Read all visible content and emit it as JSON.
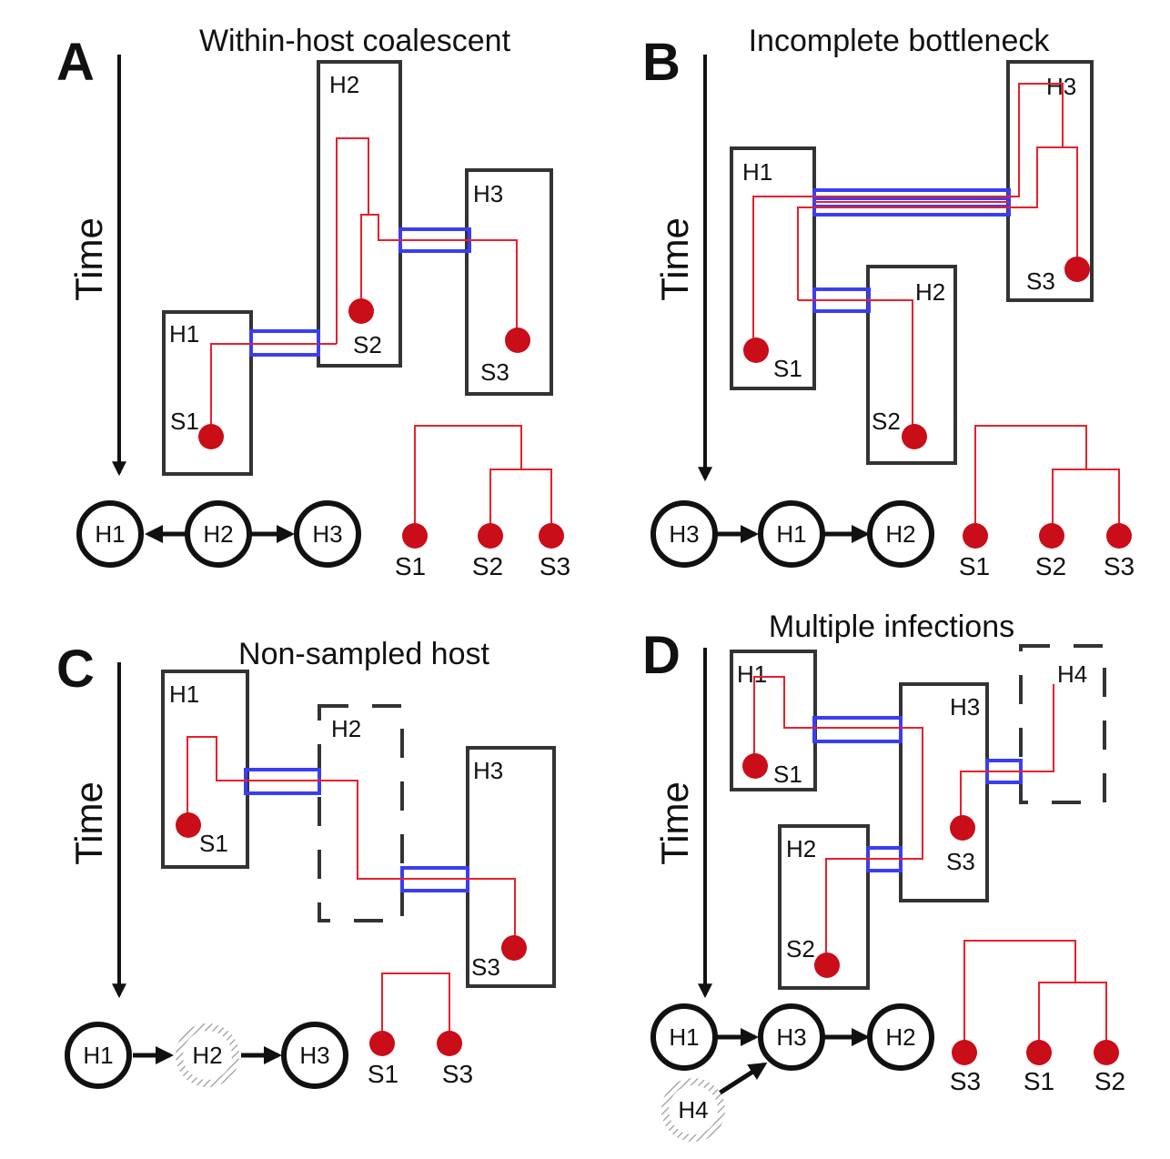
{
  "colors": {
    "lineage": "#e8202a",
    "sample": "#c90d19",
    "transmission": "#3a3ef0",
    "host_border": "#333333",
    "arrow": "#111111"
  },
  "time_label": "Time",
  "panels": {
    "A": {
      "letter": "A",
      "title": "Within-host coalescent",
      "hosts": {
        "H1": "H1",
        "H2": "H2",
        "H3": "H3"
      },
      "samples": {
        "S1": "S1",
        "S2": "S2",
        "S3": "S3"
      },
      "network": {
        "nodes": [
          "H1",
          "H2",
          "H3"
        ],
        "edges": [
          "H2 → H1",
          "H2 → H3"
        ]
      },
      "tree": {
        "leaves": [
          "S1",
          "S2",
          "S3"
        ],
        "topology": "(S1,(S2,S3))"
      }
    },
    "B": {
      "letter": "B",
      "title": "Incomplete bottleneck",
      "hosts": {
        "H1": "H1",
        "H2": "H2",
        "H3": "H3"
      },
      "samples": {
        "S1": "S1",
        "S2": "S2",
        "S3": "S3"
      },
      "network": {
        "nodes": [
          "H3",
          "H1",
          "H2"
        ],
        "edges": [
          "H3 → H1",
          "H1 → H2"
        ]
      },
      "tree": {
        "leaves": [
          "S1",
          "S2",
          "S3"
        ],
        "topology": "(S1,(S2,S3))"
      }
    },
    "C": {
      "letter": "C",
      "title": "Non-sampled host",
      "hosts": {
        "H1": "H1",
        "H2": "H2",
        "H3": "H3"
      },
      "samples": {
        "S1": "S1",
        "S3": "S3"
      },
      "network": {
        "nodes": [
          "H1",
          "H2",
          "H3"
        ],
        "edges": [
          "H1 → H2",
          "H2 → H3"
        ],
        "unsampled": [
          "H2"
        ]
      },
      "tree": {
        "leaves": [
          "S1",
          "S3"
        ],
        "topology": "(S1,S3)"
      }
    },
    "D": {
      "letter": "D",
      "title": "Multiple infections",
      "hosts": {
        "H1": "H1",
        "H2": "H2",
        "H3": "H3",
        "H4": "H4"
      },
      "samples": {
        "S1": "S1",
        "S2": "S2",
        "S3": "S3"
      },
      "network": {
        "nodes": [
          "H1",
          "H3",
          "H2",
          "H4"
        ],
        "edges": [
          "H1 → H3",
          "H3 → H2",
          "H4 → H3"
        ],
        "unsampled": [
          "H4"
        ]
      },
      "tree": {
        "leaves": [
          "S3",
          "S1",
          "S2"
        ],
        "topology": "(S3,(S1,S2))"
      }
    }
  }
}
